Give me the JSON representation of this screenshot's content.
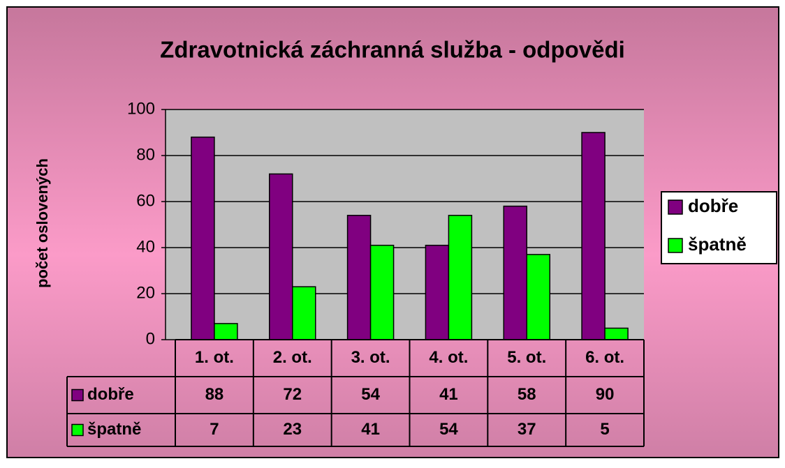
{
  "chart_data": {
    "type": "bar",
    "title": "Zdravotnická záchranná služba - odpovědi",
    "y_label": "počet oslovených",
    "categories": [
      "1. ot.",
      "2. ot.",
      "3. ot.",
      "4. ot.",
      "5. ot.",
      "6. ot."
    ],
    "series": [
      {
        "name": "dobře",
        "color": "#800080",
        "values": [
          88,
          72,
          54,
          41,
          58,
          90
        ]
      },
      {
        "name": "špatně",
        "color": "#00ff00",
        "values": [
          7,
          23,
          41,
          54,
          37,
          5
        ]
      }
    ],
    "ylim": [
      0,
      100
    ],
    "yticks": [
      0,
      20,
      40,
      60,
      80,
      100
    ],
    "grid": true,
    "legend": "right",
    "data_table": true
  }
}
